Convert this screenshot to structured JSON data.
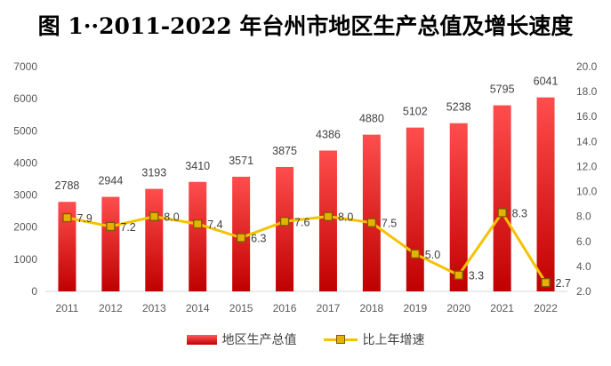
{
  "title": "图 1··2011-2022 年台州市地区生产总值及增长速度",
  "chart_data": {
    "type": "bar",
    "categories": [
      "2011",
      "2012",
      "2013",
      "2014",
      "2015",
      "2016",
      "2017",
      "2018",
      "2019",
      "2020",
      "2021",
      "2022"
    ],
    "series": [
      {
        "name": "地区生产总值",
        "type": "bar",
        "axis": "left",
        "color": "#e00000",
        "values": [
          2788,
          2944,
          3193,
          3410,
          3571,
          3875,
          4386,
          4880,
          5102,
          5238,
          5795,
          6041
        ]
      },
      {
        "name": "比上年增速",
        "type": "line",
        "axis": "right",
        "color": "#f5c200",
        "values": [
          7.9,
          7.2,
          8.0,
          7.4,
          6.3,
          7.6,
          8.0,
          7.5,
          5.0,
          3.3,
          8.3,
          2.7
        ]
      }
    ],
    "y_left": {
      "min": 0,
      "max": 7000,
      "step": 1000,
      "ticks": [
        "0",
        "1000",
        "2000",
        "3000",
        "4000",
        "5000",
        "6000",
        "7000"
      ]
    },
    "y_right": {
      "min": 2.0,
      "max": 20.0,
      "step": 2.0,
      "ticks": [
        "2.0",
        "4.0",
        "6.0",
        "8.0",
        "10.0",
        "12.0",
        "14.0",
        "16.0",
        "18.0",
        "20.0"
      ]
    },
    "bar_labels": [
      "2788",
      "2944",
      "3193",
      "3410",
      "3571",
      "3875",
      "4386",
      "4880",
      "5102",
      "5238",
      "5795",
      "6041"
    ],
    "line_labels": [
      "7.9",
      "7.2",
      "8.0",
      "7.4",
      "6.3",
      "7.6",
      "8.0",
      "7.5",
      "5.0",
      "3.3",
      "8.3",
      "2.7"
    ],
    "grid": false,
    "legend": {
      "position": "bottom",
      "items": [
        "地区生产总值",
        "比上年增速"
      ]
    }
  }
}
